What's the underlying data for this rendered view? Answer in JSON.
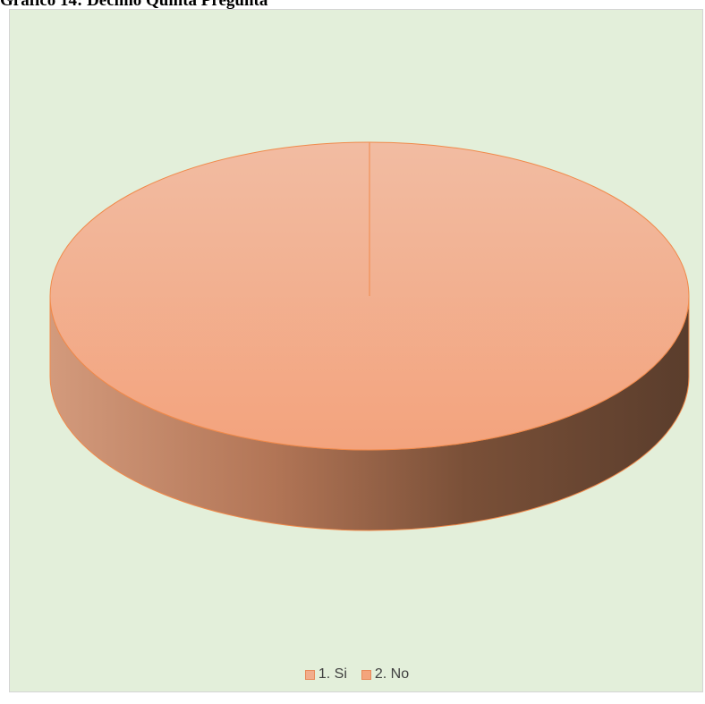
{
  "page": {
    "heading": "Gráfico 14: Décimo Quinta Pregunta"
  },
  "chart_data": {
    "type": "pie",
    "title": "",
    "categories": [
      "1. Si",
      "2. No"
    ],
    "values": [
      100,
      0
    ],
    "colors": [
      "#f2ad8c",
      "#f4a47c"
    ],
    "legend_position": "bottom",
    "style": "3d"
  }
}
